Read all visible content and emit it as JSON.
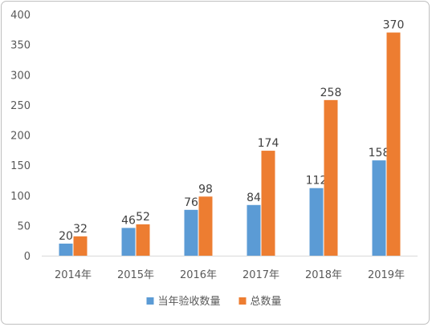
{
  "chart_data": {
    "type": "bar",
    "title": "",
    "xlabel": "",
    "ylabel": "",
    "categories": [
      "2014年",
      "2015年",
      "2016年",
      "2017年",
      "2018年",
      "2019年"
    ],
    "series": [
      {
        "name": "当年验收数量",
        "values": [
          20,
          46,
          76,
          84,
          112,
          158
        ],
        "color": "#5b9bd5"
      },
      {
        "name": "总数量",
        "values": [
          32,
          52,
          98,
          174,
          258,
          370
        ],
        "color": "#ed7d31"
      }
    ],
    "ylim": [
      0,
      400
    ],
    "yticks": [
      0,
      50,
      100,
      150,
      200,
      250,
      300,
      350,
      400
    ],
    "grid": false,
    "legend": "bottom"
  }
}
